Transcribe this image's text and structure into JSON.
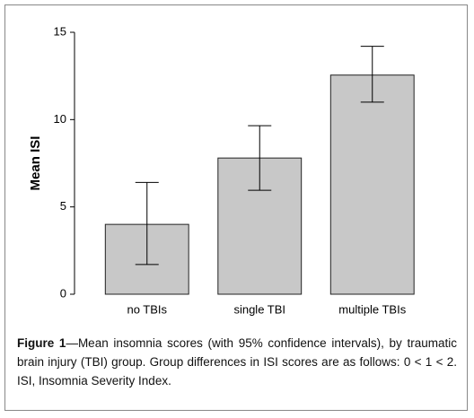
{
  "chart_data": {
    "type": "bar",
    "y_label": "Mean ISI",
    "categories": [
      "no TBIs",
      "single TBI",
      "multiple TBIs"
    ],
    "values": [
      4.0,
      7.8,
      12.55
    ],
    "ci_low": [
      1.7,
      5.95,
      11.0
    ],
    "ci_high": [
      6.4,
      9.65,
      14.2
    ],
    "color": "#c8c8c8",
    "ylim": [
      0,
      15
    ],
    "yticks": [
      0,
      5,
      10,
      15
    ],
    "caption_label": "Figure 1",
    "caption": "—Mean insomnia scores (with 95% confidence intervals), by traumatic brain injury (TBI) group. Group differences in ISI scores are as follows: 0 < 1 < 2. ISI, Insomnia Severity Index."
  }
}
